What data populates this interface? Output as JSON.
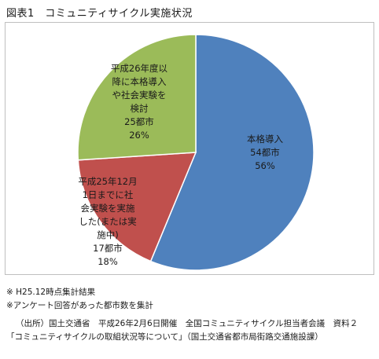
{
  "figure_title": "図表1　コミュニティサイクル実施状況",
  "chart_data": {
    "type": "pie",
    "title": "",
    "slices": [
      {
        "category": "本格導入",
        "count_label": "54都市",
        "value": 54,
        "percent_label": "56%",
        "color": "#4f81bd",
        "label_lines": [
          "本格導入",
          "54都市",
          "56%"
        ]
      },
      {
        "category": "平成25年12月1日までに社会実験を実施した(または実施中)",
        "count_label": "17都市",
        "value": 17,
        "percent_label": "18%",
        "color": "#c0504d",
        "label_lines": [
          "平成25年12月",
          "1日までに社",
          "会実験を実施",
          "した(または実",
          "施中)",
          "17都市",
          "18%"
        ]
      },
      {
        "category": "平成26年度以降に本格導入や社会実験を検討",
        "count_label": "25都市",
        "value": 25,
        "percent_label": "26%",
        "color": "#9bbb59",
        "label_lines": [
          "平成26年度以",
          "降に本格導入",
          "や社会実験を",
          "検討",
          "25都市",
          "26%"
        ]
      }
    ]
  },
  "notes": [
    "※ H25.12時点集計結果",
    "※アンケート回答があった都市数を集計"
  ],
  "source": {
    "line1": "（出所）国土交通省　平成26年2月6日開催　全国コミュニティサイクル担当者会議　資料２",
    "line2": "「コミュニティサイクルの取組状況等について」（国土交通省都市局街路交通施設課）"
  }
}
